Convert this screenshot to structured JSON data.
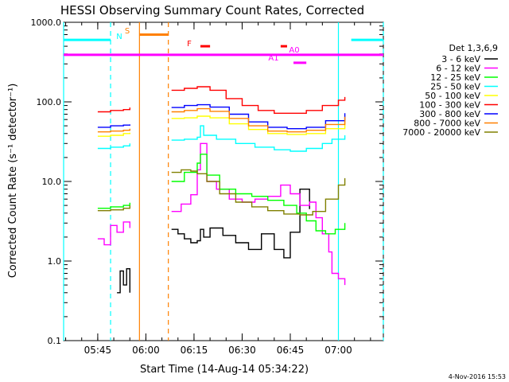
{
  "chart_data": {
    "type": "line",
    "title": "HESSI Observing Summary Count Rates, Corrected",
    "xlabel": "Start Time (14-Aug-14 05:34:22)",
    "ylabel": "Corrected Count Rate (s⁻¹ detector⁻¹)",
    "y_scale": "log",
    "ylim": [
      0.1,
      1000
    ],
    "xlim": [
      "05:34:22",
      "07:14:00"
    ],
    "y_ticks": [
      0.1,
      1,
      10,
      100,
      1000
    ],
    "y_tick_labels": [
      "0.1",
      "1.0",
      "10.0",
      "100.0",
      "1000.0"
    ],
    "x_ticks": [
      "05:45",
      "06:00",
      "06:15",
      "06:30",
      "06:45",
      "07:00"
    ],
    "legend_title": "Det 1,3,6,9",
    "legend_placement": "right",
    "grid": false,
    "series": [
      {
        "name": "3 - 6 keV",
        "color": "#000000",
        "segments": [
          {
            "x": [
              "05:51",
              "05:52",
              "05:53",
              "05:54",
              "05:55"
            ],
            "y": [
              0.4,
              0.75,
              0.5,
              0.8,
              0.4
            ]
          },
          {
            "x": [
              "06:08",
              "06:10",
              "06:12",
              "06:14",
              "06:16",
              "06:17",
              "06:18",
              "06:20",
              "06:24",
              "06:28",
              "06:32",
              "06:36",
              "06:40",
              "06:43",
              "06:45",
              "06:48",
              "06:51"
            ],
            "y": [
              2.5,
              2.2,
              1.9,
              1.7,
              1.8,
              2.5,
              2.0,
              2.6,
              2.1,
              1.7,
              1.4,
              2.2,
              1.4,
              1.1,
              2.3,
              8,
              4.5
            ]
          }
        ]
      },
      {
        "name": "6 - 12 keV",
        "color": "#ff00ff",
        "segments": [
          {
            "x": [
              "05:45",
              "05:47",
              "05:49",
              "05:51",
              "05:53",
              "05:55"
            ],
            "y": [
              1.9,
              1.6,
              2.8,
              2.3,
              3.1,
              2.6
            ]
          },
          {
            "x": [
              "06:08",
              "06:11",
              "06:14",
              "06:16",
              "06:17",
              "06:19",
              "06:22",
              "06:26",
              "06:30",
              "06:34",
              "06:38",
              "06:42",
              "06:45",
              "06:48",
              "06:51",
              "06:53",
              "06:55",
              "06:57",
              "06:58",
              "07:00",
              "07:02"
            ],
            "y": [
              4.2,
              5.2,
              6.8,
              14,
              30,
              10,
              8,
              6,
              5.5,
              6,
              6.5,
              9,
              7,
              5,
              5.5,
              3.5,
              2.2,
              1.3,
              0.7,
              0.6,
              0.5
            ]
          }
        ]
      },
      {
        "name": "12 - 25 keV",
        "color": "#00ff00",
        "segments": [
          {
            "x": [
              "05:45",
              "05:49",
              "05:53",
              "05:55"
            ],
            "y": [
              4.6,
              4.8,
              5,
              5.4
            ]
          },
          {
            "x": [
              "06:08",
              "06:12",
              "06:16",
              "06:17",
              "06:19",
              "06:23",
              "06:28",
              "06:33",
              "06:38",
              "06:43",
              "06:47",
              "06:50",
              "06:53",
              "06:56",
              "06:59",
              "07:02"
            ],
            "y": [
              10,
              13,
              17,
              22,
              12,
              8,
              7,
              6.5,
              5.8,
              5,
              4,
              3.2,
              2.4,
              2.2,
              2.5,
              3
            ]
          }
        ]
      },
      {
        "name": "25 - 50 keV",
        "color": "#00ffff",
        "segments": [
          {
            "x": [
              "05:45",
              "05:49",
              "05:53",
              "05:55"
            ],
            "y": [
              26,
              27,
              28,
              30
            ]
          },
          {
            "x": [
              "06:08",
              "06:12",
              "06:16",
              "06:17",
              "06:18",
              "06:22",
              "06:28",
              "06:34",
              "06:40",
              "06:45",
              "06:50",
              "06:55",
              "06:58",
              "07:02"
            ],
            "y": [
              33,
              34,
              36,
              50,
              38,
              34,
              30,
              27,
              25,
              24,
              26,
              30,
              34,
              38
            ]
          }
        ]
      },
      {
        "name": "50 - 100 keV",
        "color": "#ffff00",
        "segments": [
          {
            "x": [
              "05:45",
              "05:49",
              "05:53",
              "05:55"
            ],
            "y": [
              37,
              38,
              40,
              41
            ]
          },
          {
            "x": [
              "06:08",
              "06:12",
              "06:16",
              "06:20",
              "06:26",
              "06:32",
              "06:38",
              "06:44",
              "06:50",
              "06:56",
              "07:02"
            ],
            "y": [
              62,
              63,
              66,
              63,
              53,
              45,
              40,
              39,
              40,
              46,
              58
            ]
          }
        ]
      },
      {
        "name": "100 - 300 keV",
        "color": "#ff0000",
        "segments": [
          {
            "x": [
              "05:45",
              "05:49",
              "05:53",
              "05:55"
            ],
            "y": [
              75,
              78,
              80,
              85
            ]
          },
          {
            "x": [
              "06:08",
              "06:12",
              "06:16",
              "06:20",
              "06:25",
              "06:30",
              "06:35",
              "06:40",
              "06:45",
              "06:50",
              "06:55",
              "07:00",
              "07:02"
            ],
            "y": [
              140,
              148,
              155,
              140,
              110,
              90,
              78,
              72,
              72,
              78,
              90,
              105,
              115
            ]
          }
        ]
      },
      {
        "name": "300 - 800 keV",
        "color": "#0000ff",
        "segments": [
          {
            "x": [
              "05:45",
              "05:49",
              "05:53",
              "05:55"
            ],
            "y": [
              48,
              50,
              51,
              52
            ]
          },
          {
            "x": [
              "06:08",
              "06:12",
              "06:16",
              "06:20",
              "06:26",
              "06:32",
              "06:38",
              "06:44",
              "06:50",
              "06:56",
              "07:02"
            ],
            "y": [
              85,
              90,
              92,
              86,
              70,
              56,
              48,
              46,
              48,
              58,
              72
            ]
          }
        ]
      },
      {
        "name": "800 - 7000 keV",
        "color": "#ff8000",
        "segments": [
          {
            "x": [
              "05:45",
              "05:49",
              "05:53",
              "05:55"
            ],
            "y": [
              42,
              43,
              44,
              46
            ]
          },
          {
            "x": [
              "06:08",
              "06:12",
              "06:16",
              "06:20",
              "06:26",
              "06:32",
              "06:38",
              "06:44",
              "06:50",
              "06:56",
              "07:02"
            ],
            "y": [
              75,
              78,
              82,
              76,
              62,
              50,
              43,
              42,
              44,
              52,
              65
            ]
          }
        ]
      },
      {
        "name": "7000 - 20000 keV",
        "color": "#808000",
        "segments": [
          {
            "x": [
              "05:45",
              "05:49",
              "05:53",
              "05:55"
            ],
            "y": [
              4.3,
              4.4,
              4.6,
              5
            ]
          },
          {
            "x": [
              "06:08",
              "06:11",
              "06:14",
              "06:16",
              "06:19",
              "06:23",
              "06:28",
              "06:33",
              "06:38",
              "06:43",
              "06:48",
              "06:52",
              "06:56",
              "07:00",
              "07:02"
            ],
            "y": [
              13,
              14,
              13.5,
              12.5,
              10,
              7,
              5.5,
              4.8,
              4.3,
              3.9,
              3.8,
              4.2,
              6,
              9,
              11
            ]
          }
        ]
      }
    ],
    "annotations": [
      {
        "label": "N",
        "color": "#00ffff",
        "x_start": "05:34:22",
        "x_end": "05:49:00",
        "y": 600
      },
      {
        "label": "N",
        "color": "#00ffff",
        "x_start": "07:04:00",
        "x_end": "07:14:00",
        "y": 600
      },
      {
        "label": "S",
        "color": "#ff8000",
        "x_start": "05:58:00",
        "x_end": "06:07:00",
        "y": 700
      },
      {
        "label": "F",
        "color": "#ff0000",
        "x_start": "06:17:00",
        "x_end": "06:20:00",
        "y": 500
      },
      {
        "label": "",
        "color": "#ff0000",
        "x_start": "06:42:00",
        "x_end": "06:44:00",
        "y": 500
      },
      {
        "label": "A0",
        "color": "#ff00ff",
        "x_start": "05:34:22",
        "x_end": "07:14:00",
        "y": 390
      },
      {
        "label": "A1",
        "color": "#ff00ff",
        "x_start": "06:46:00",
        "x_end": "06:50:00",
        "y": 310
      }
    ],
    "vertical_lines": [
      {
        "x": "05:34:22",
        "color": "#00ffff",
        "style": "solid"
      },
      {
        "x": "05:49:00",
        "color": "#00ffff",
        "style": "dashed"
      },
      {
        "x": "05:58:00",
        "color": "#ff8000",
        "style": "solid"
      },
      {
        "x": "06:07:00",
        "color": "#ff8000",
        "style": "dashed"
      },
      {
        "x": "07:00:00",
        "color": "#00ffff",
        "style": "solid"
      },
      {
        "x": "07:14:00",
        "color": "#00ffff",
        "style": "dashed"
      }
    ],
    "footer": "4-Nov-2016 15:53"
  }
}
